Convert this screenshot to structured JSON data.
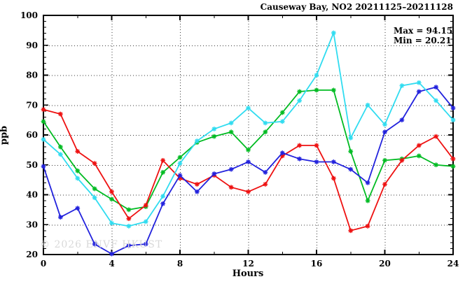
{
  "header": {
    "title": "Causeway Bay, NO2 20211125–20211128"
  },
  "annotation": {
    "max_label": "Max = 94.15",
    "min_label": "Min = 20.21"
  },
  "axes": {
    "x_label": "Hours",
    "y_label": "ppb"
  },
  "watermark": {
    "text": "© 2026 ENVF HKUST"
  },
  "chart_data": {
    "type": "line",
    "title": "Causeway Bay, NO2 20211125–20211128",
    "xlabel": "Hours",
    "ylabel": "ppb",
    "xlim": [
      0,
      24
    ],
    "ylim": [
      20,
      100
    ],
    "x_major_ticks": [
      0,
      4,
      8,
      12,
      16,
      20,
      24
    ],
    "x_minor_ticks": [
      2,
      6,
      10,
      14,
      18,
      22
    ],
    "y_major_ticks": [
      20,
      30,
      40,
      50,
      60,
      70,
      80,
      90,
      100
    ],
    "y_minor_step": 2,
    "grid": "dotted lines at major ticks, boxed frame with inward ticks on all four sides",
    "legend": "none",
    "annotations": {
      "max": 94.15,
      "min": 20.21
    },
    "marker": "asterisk",
    "x": [
      0,
      1,
      2,
      3,
      4,
      5,
      6,
      7,
      8,
      9,
      10,
      11,
      12,
      13,
      14,
      15,
      16,
      17,
      18,
      19,
      20,
      21,
      22,
      23,
      24
    ],
    "series": [
      {
        "name": "green",
        "color": "#00bb22",
        "values": [
          64.5,
          56,
          48,
          42,
          38.5,
          35,
          36,
          47.5,
          52.5,
          57.5,
          59.5,
          61,
          55,
          61,
          67.5,
          74.5,
          75,
          75,
          54.5,
          38,
          51.5,
          52,
          53,
          50,
          49.5
        ]
      },
      {
        "name": "red",
        "color": "#ee1111",
        "values": [
          68.5,
          67,
          54.5,
          50.5,
          41,
          32,
          36.5,
          51.5,
          45.5,
          43.5,
          46.5,
          42.5,
          41,
          43.5,
          53,
          56.5,
          56.5,
          45.5,
          28,
          29.5,
          43.5,
          51.5,
          56.5,
          59.5,
          52
        ]
      },
      {
        "name": "blue",
        "color": "#2222dd",
        "values": [
          49.5,
          32.5,
          35.5,
          23.5,
          20.21,
          23,
          23.5,
          37,
          46.5,
          41,
          47,
          48.5,
          51,
          47.5,
          54,
          52,
          51,
          51,
          48.5,
          44,
          61,
          65,
          74.5,
          76,
          69
        ]
      },
      {
        "name": "cyan",
        "color": "#30dcf0",
        "values": [
          58.5,
          53.5,
          45.5,
          39,
          30.5,
          29.5,
          31,
          39.5,
          50.5,
          58,
          62,
          64,
          69,
          64,
          64.5,
          71.5,
          80,
          94.15,
          59,
          70,
          63.5,
          76.5,
          77.5,
          71.5,
          65
        ]
      }
    ]
  }
}
